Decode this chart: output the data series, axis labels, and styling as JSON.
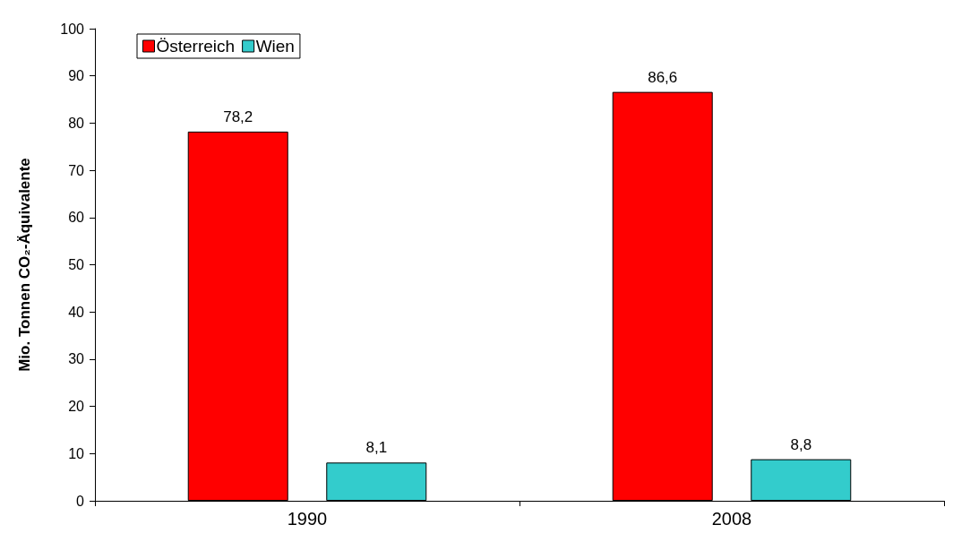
{
  "chart_data": {
    "type": "bar",
    "ylabel": "Mio. Tonnen CO₂-Äquivalente",
    "categories": [
      "1990",
      "2008"
    ],
    "series": [
      {
        "name": "Österreich",
        "color": "#ff0000",
        "values": [
          78.2,
          86.6
        ],
        "value_labels": [
          "78,2",
          "86,6"
        ]
      },
      {
        "name": "Wien",
        "color": "#33cccc",
        "values": [
          8.1,
          8.8
        ],
        "value_labels": [
          "8,1",
          "8,8"
        ]
      }
    ],
    "ylim": [
      0,
      100
    ],
    "yticks": [
      0,
      10,
      20,
      30,
      40,
      50,
      60,
      70,
      80,
      90,
      100
    ],
    "grid": false,
    "legend": "top left"
  }
}
